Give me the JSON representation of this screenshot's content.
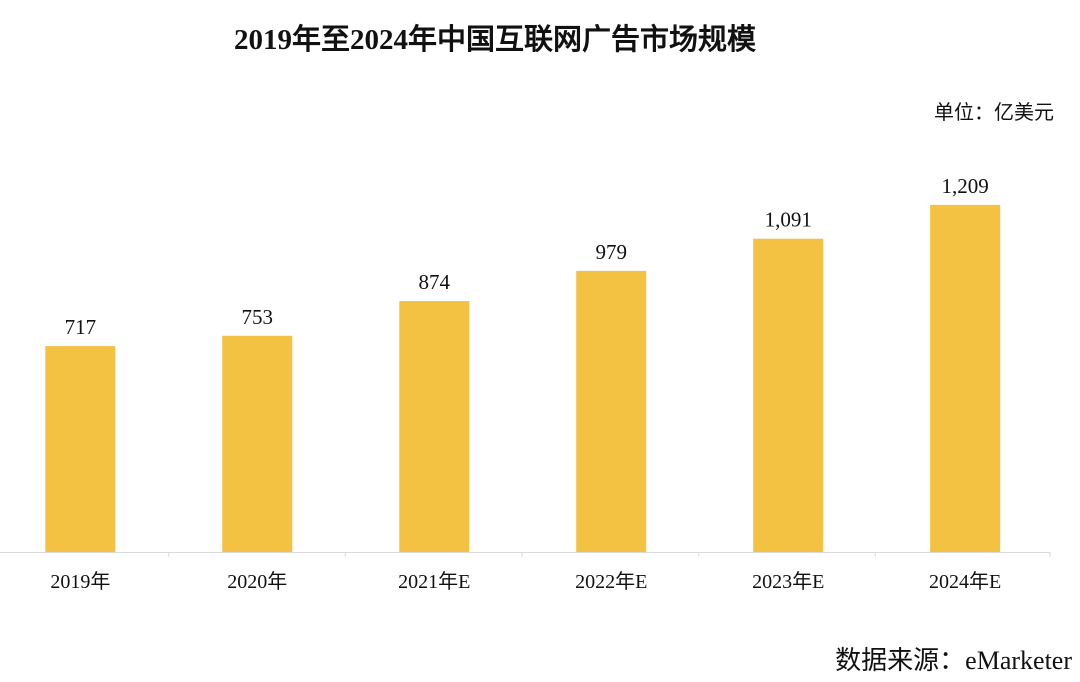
{
  "chart_data": {
    "type": "bar",
    "title": "2019年至2024年中国互联网广告市场规模",
    "unit_label": "单位：亿美元",
    "source": "数据来源：eMarketer",
    "categories": [
      "2019年",
      "2020年",
      "2021年E",
      "2022年E",
      "2023年E",
      "2024年E"
    ],
    "values": [
      717,
      753,
      874,
      979,
      1091,
      1209
    ],
    "value_labels": [
      "717",
      "753",
      "874",
      "979",
      "1,091",
      "1,209"
    ],
    "xlabel": "",
    "ylabel": "",
    "ylim": [
      0,
      1400
    ],
    "grid": false,
    "bar_color": "#F4C242",
    "axis_color": "#D9D9D9"
  }
}
